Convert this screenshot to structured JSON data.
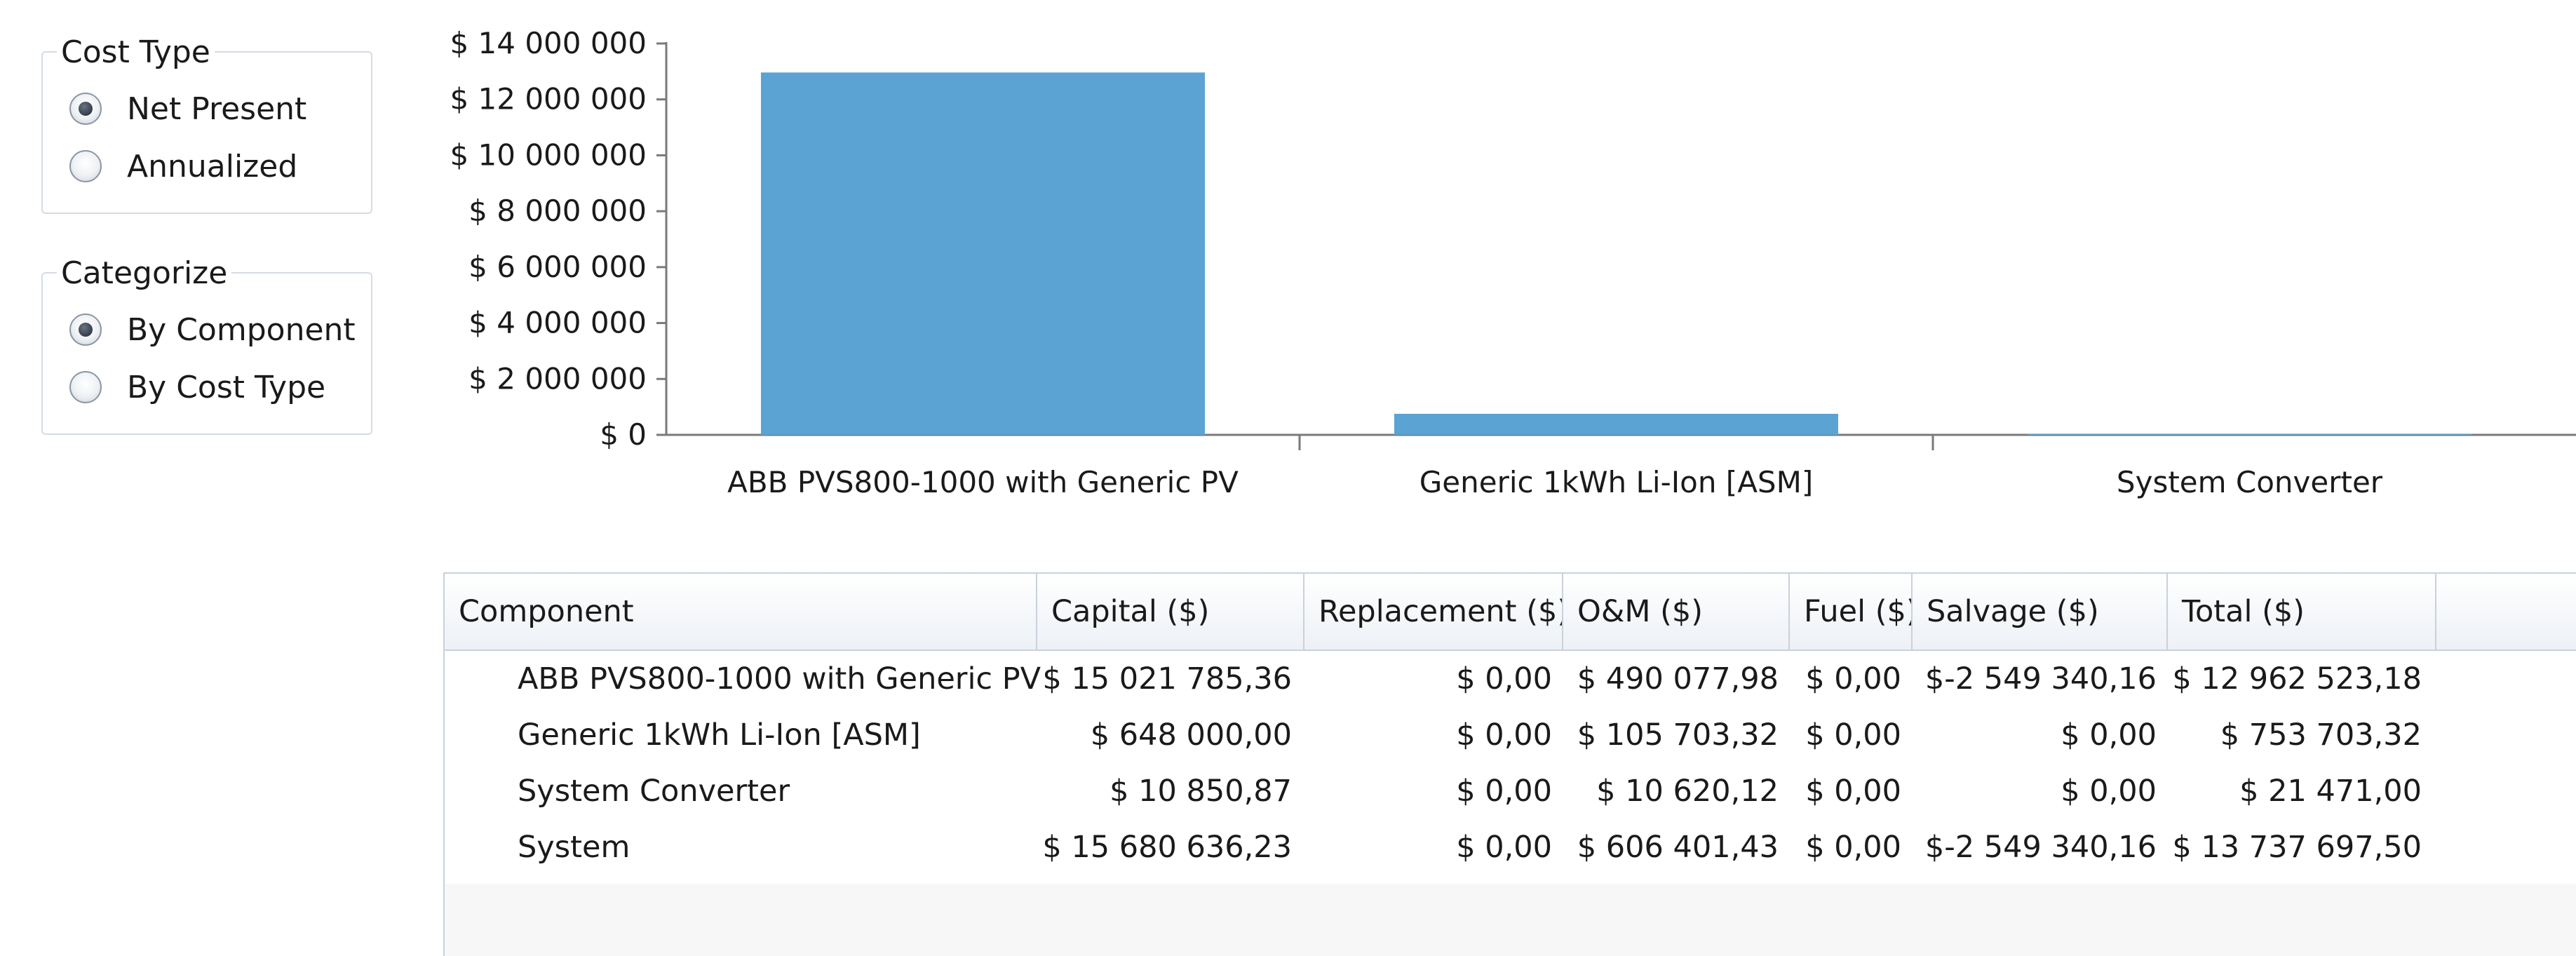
{
  "cost_type": {
    "legend": "Cost Type",
    "options": [
      {
        "label": "Net Present",
        "checked": true
      },
      {
        "label": "Annualized",
        "checked": false
      }
    ]
  },
  "categorize": {
    "legend": "Categorize",
    "options": [
      {
        "label": "By Component",
        "checked": true
      },
      {
        "label": "By Cost Type",
        "checked": false
      }
    ]
  },
  "chart_data": {
    "type": "bar",
    "categories": [
      "ABB PVS800-1000 with Generic PV",
      "Generic 1kWh Li-Ion [ASM]",
      "System Converter"
    ],
    "values": [
      12962523.18,
      753703.32,
      21471.0
    ],
    "ylim": [
      0,
      14000000
    ],
    "yticks": [
      0,
      2000000,
      4000000,
      6000000,
      8000000,
      10000000,
      12000000,
      14000000
    ],
    "ytick_labels": [
      "$ 0",
      "$ 2 000 000",
      "$ 4 000 000",
      "$ 6 000 000",
      "$ 8 000 000",
      "$ 10 000 000",
      "$ 12 000 000",
      "$ 14 000 000"
    ],
    "bar_color": "#5ba3d3",
    "grid": false,
    "legend": "none"
  },
  "table": {
    "columns": [
      "Component",
      "Capital ($)",
      "Replacement ($)",
      "O&M ($)",
      "Fuel ($)",
      "Salvage ($)",
      "Total ($)"
    ],
    "rows": [
      [
        "ABB PVS800-1000 with Generic PV",
        "$ 15 021 785,36",
        "$ 0,00",
        "$ 490 077,98",
        "$ 0,00",
        "$-2 549 340,16",
        "$ 12 962 523,18"
      ],
      [
        "Generic 1kWh Li-Ion [ASM]",
        "$ 648 000,00",
        "$ 0,00",
        "$ 105 703,32",
        "$ 0,00",
        "$ 0,00",
        "$ 753 703,32"
      ],
      [
        "System Converter",
        "$ 10 850,87",
        "$ 0,00",
        "$ 10 620,12",
        "$ 0,00",
        "$ 0,00",
        "$ 21 471,00"
      ],
      [
        "System",
        "$ 15 680 636,23",
        "$ 0,00",
        "$ 606 401,43",
        "$ 0,00",
        "$-2 549 340,16",
        "$ 13 737 697,50"
      ]
    ]
  }
}
